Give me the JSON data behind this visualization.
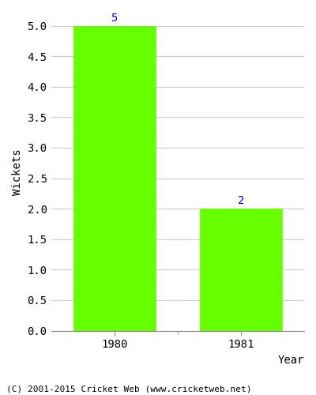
{
  "categories": [
    "1980",
    "1981"
  ],
  "values": [
    5,
    2
  ],
  "bar_color": "#66ff00",
  "bar_edge_color": "#66ff00",
  "xlabel": "Year",
  "ylabel": "Wickets",
  "ylim": [
    0,
    5.2
  ],
  "yticks": [
    0.0,
    0.5,
    1.0,
    1.5,
    2.0,
    2.5,
    3.0,
    3.5,
    4.0,
    4.5,
    5.0
  ],
  "annotation_color": "#0000cc",
  "annotation_fontsize": 10,
  "axis_label_fontsize": 10,
  "tick_fontsize": 10,
  "footer_text": "(C) 2001-2015 Cricket Web (www.cricketweb.net)",
  "footer_fontsize": 8,
  "background_color": "#ffffff",
  "grid_color": "#cccccc",
  "label_color": "#000000",
  "bar_width": 0.65,
  "xlim": [
    -0.5,
    1.5
  ]
}
